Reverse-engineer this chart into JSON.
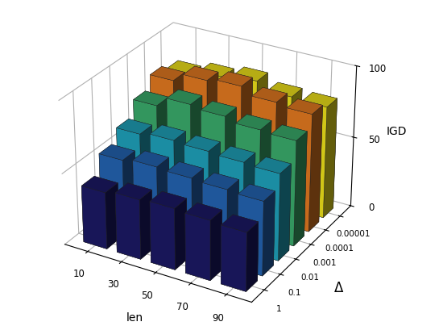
{
  "len_values": [
    10,
    30,
    50,
    70,
    90
  ],
  "delta_labels": [
    "1",
    "0.1",
    "0.01",
    "0.001",
    "0.0001",
    "0.00001"
  ],
  "igd_values": [
    [
      40,
      42,
      43,
      42,
      41
    ],
    [
      53,
      55,
      54,
      53,
      52
    ],
    [
      62,
      64,
      63,
      62,
      61
    ],
    [
      73,
      80,
      78,
      75,
      74
    ],
    [
      82,
      88,
      90,
      85,
      83
    ],
    [
      78,
      82,
      85,
      80,
      79
    ]
  ],
  "colors_list": [
    "#1b1964",
    "#2363b0",
    "#1fa0b8",
    "#3aaa6a",
    "#e07820",
    "#ede01a"
  ],
  "zlim": [
    0,
    100
  ],
  "xlabel": "len",
  "ylabel": "Δ",
  "zlabel": "IGD",
  "bar_width": 0.7,
  "bar_depth": 0.7,
  "background_color": "#ffffff",
  "elev": 28,
  "azim": -60
}
